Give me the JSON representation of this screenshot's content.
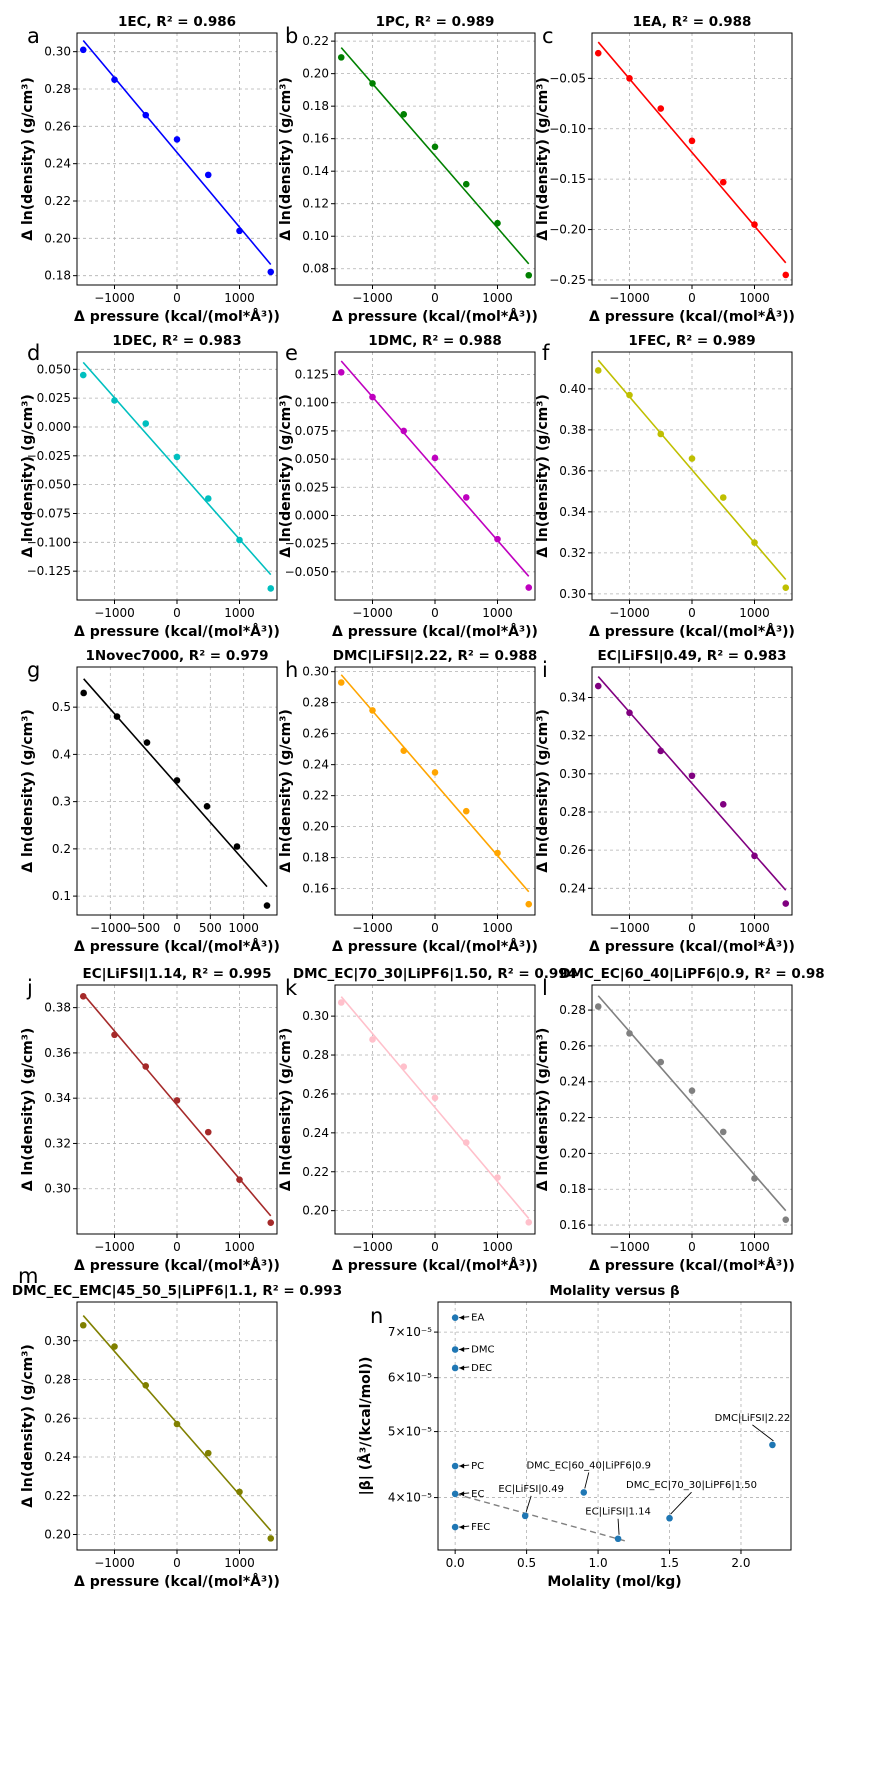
{
  "figure": {
    "xlabel": "Δ pressure (kcal/(mol*Å³))",
    "ylabel": "Δ ln(density) (g/cm³)"
  },
  "chart_data": [
    {
      "letter": "a",
      "type": "scatter",
      "title": "1EC, R² = 0.986",
      "color": "#0000ff",
      "x": [
        -1500,
        -1000,
        -500,
        0,
        500,
        1000,
        1500
      ],
      "y": [
        0.301,
        0.285,
        0.266,
        0.253,
        0.234,
        0.204,
        0.182
      ],
      "fit": [
        0.306,
        0.186
      ],
      "xlim": [
        -1600,
        1600
      ],
      "ylim": [
        0.175,
        0.31
      ],
      "xticks": [
        -1000,
        0,
        1000
      ],
      "xtick_labels": [
        "−1000",
        "0",
        "1000"
      ],
      "yticks": [
        0.18,
        0.2,
        0.22,
        0.24,
        0.26,
        0.28,
        0.3
      ],
      "ytick_labels": [
        "0.18",
        "0.20",
        "0.22",
        "0.24",
        "0.26",
        "0.28",
        "0.30"
      ]
    },
    {
      "letter": "b",
      "type": "scatter",
      "title": "1PC, R² = 0.989",
      "color": "#008000",
      "x": [
        -1500,
        -1000,
        -500,
        0,
        500,
        1000,
        1500
      ],
      "y": [
        0.21,
        0.194,
        0.175,
        0.155,
        0.132,
        0.108,
        0.076
      ],
      "fit": [
        0.216,
        0.083
      ],
      "xlim": [
        -1600,
        1600
      ],
      "ylim": [
        0.07,
        0.225
      ],
      "xticks": [
        -1000,
        0,
        1000
      ],
      "xtick_labels": [
        "−1000",
        "0",
        "1000"
      ],
      "yticks": [
        0.08,
        0.1,
        0.12,
        0.14,
        0.16,
        0.18,
        0.2,
        0.22
      ],
      "ytick_labels": [
        "0.08",
        "0.10",
        "0.12",
        "0.14",
        "0.16",
        "0.18",
        "0.20",
        "0.22"
      ]
    },
    {
      "letter": "c",
      "type": "scatter",
      "title": "1EA, R² = 0.988",
      "color": "#ff0000",
      "x": [
        -1500,
        -1000,
        -500,
        0,
        500,
        1000,
        1500
      ],
      "y": [
        -0.025,
        -0.05,
        -0.08,
        -0.112,
        -0.153,
        -0.195,
        -0.245
      ],
      "fit": [
        -0.014,
        -0.233
      ],
      "xlim": [
        -1600,
        1600
      ],
      "ylim": [
        -0.255,
        -0.005
      ],
      "xticks": [
        -1000,
        0,
        1000
      ],
      "xtick_labels": [
        "−1000",
        "0",
        "1000"
      ],
      "yticks": [
        -0.25,
        -0.2,
        -0.15,
        -0.1,
        -0.05
      ],
      "ytick_labels": [
        "−0.25",
        "−0.20",
        "−0.15",
        "−0.10",
        "−0.05"
      ]
    },
    {
      "letter": "d",
      "type": "scatter",
      "title": "1DEC, R² = 0.983",
      "color": "#00bfbf",
      "x": [
        -1500,
        -1000,
        -500,
        0,
        500,
        1000,
        1500
      ],
      "y": [
        0.045,
        0.023,
        0.003,
        -0.026,
        -0.062,
        -0.098,
        -0.14
      ],
      "fit": [
        0.056,
        -0.128
      ],
      "xlim": [
        -1600,
        1600
      ],
      "ylim": [
        -0.15,
        0.065
      ],
      "xticks": [
        -1000,
        0,
        1000
      ],
      "xtick_labels": [
        "−1000",
        "0",
        "1000"
      ],
      "yticks": [
        -0.125,
        -0.1,
        -0.075,
        -0.05,
        -0.025,
        0.0,
        0.025,
        0.05
      ],
      "ytick_labels": [
        "−0.125",
        "−0.100",
        "−0.075",
        "−0.050",
        "−0.025",
        "0.000",
        "0.025",
        "0.050"
      ]
    },
    {
      "letter": "e",
      "type": "scatter",
      "title": "1DMC, R² = 0.988",
      "color": "#bf00bf",
      "x": [
        -1500,
        -1000,
        -500,
        0,
        500,
        1000,
        1500
      ],
      "y": [
        0.127,
        0.105,
        0.075,
        0.051,
        0.016,
        -0.021,
        -0.064
      ],
      "fit": [
        0.137,
        -0.054
      ],
      "xlim": [
        -1600,
        1600
      ],
      "ylim": [
        -0.075,
        0.145
      ],
      "xticks": [
        -1000,
        0,
        1000
      ],
      "xtick_labels": [
        "−1000",
        "0",
        "1000"
      ],
      "yticks": [
        -0.05,
        -0.025,
        0.0,
        0.025,
        0.05,
        0.075,
        0.1,
        0.125
      ],
      "ytick_labels": [
        "−0.050",
        "−0.025",
        "0.000",
        "0.025",
        "0.050",
        "0.075",
        "0.100",
        "0.125"
      ]
    },
    {
      "letter": "f",
      "type": "scatter",
      "title": "1FEC, R² = 0.989",
      "color": "#bfbf00",
      "x": [
        -1500,
        -1000,
        -500,
        0,
        500,
        1000,
        1500
      ],
      "y": [
        0.409,
        0.397,
        0.378,
        0.366,
        0.347,
        0.325,
        0.303
      ],
      "fit": [
        0.414,
        0.307
      ],
      "xlim": [
        -1600,
        1600
      ],
      "ylim": [
        0.297,
        0.418
      ],
      "xticks": [
        -1000,
        0,
        1000
      ],
      "xtick_labels": [
        "−1000",
        "0",
        "1000"
      ],
      "yticks": [
        0.3,
        0.32,
        0.34,
        0.36,
        0.38,
        0.4
      ],
      "ytick_labels": [
        "0.30",
        "0.32",
        "0.34",
        "0.36",
        "0.38",
        "0.40"
      ]
    },
    {
      "letter": "g",
      "type": "scatter",
      "title": "1Novec7000, R² = 0.979",
      "color": "#000000",
      "x": [
        -1400,
        -900,
        -450,
        0,
        450,
        900,
        1350
      ],
      "y": [
        0.53,
        0.48,
        0.425,
        0.345,
        0.29,
        0.205,
        0.08
      ],
      "fit": [
        0.56,
        0.12
      ],
      "xlim": [
        -1500,
        1500
      ],
      "ylim": [
        0.06,
        0.585
      ],
      "xticks": [
        -1000,
        -500,
        0,
        500,
        1000
      ],
      "xtick_labels": [
        "−1000",
        "−500",
        "0",
        "500",
        "1000"
      ],
      "yticks": [
        0.1,
        0.2,
        0.3,
        0.4,
        0.5
      ],
      "ytick_labels": [
        "0.1",
        "0.2",
        "0.3",
        "0.4",
        "0.5"
      ]
    },
    {
      "letter": "h",
      "type": "scatter",
      "title": "DMC|LiFSI|2.22, R² = 0.988",
      "color": "#ffa500",
      "x": [
        -1500,
        -1000,
        -500,
        0,
        500,
        1000,
        1500
      ],
      "y": [
        0.293,
        0.275,
        0.249,
        0.235,
        0.21,
        0.183,
        0.15
      ],
      "fit": [
        0.298,
        0.158
      ],
      "xlim": [
        -1600,
        1600
      ],
      "ylim": [
        0.143,
        0.303
      ],
      "xticks": [
        -1000,
        0,
        1000
      ],
      "xtick_labels": [
        "−1000",
        "0",
        "1000"
      ],
      "yticks": [
        0.16,
        0.18,
        0.2,
        0.22,
        0.24,
        0.26,
        0.28,
        0.3
      ],
      "ytick_labels": [
        "0.16",
        "0.18",
        "0.20",
        "0.22",
        "0.24",
        "0.26",
        "0.28",
        "0.30"
      ]
    },
    {
      "letter": "i",
      "type": "scatter",
      "title": "EC|LiFSI|0.49, R² = 0.983",
      "color": "#800080",
      "x": [
        -1500,
        -1000,
        -500,
        0,
        500,
        1000,
        1500
      ],
      "y": [
        0.346,
        0.332,
        0.312,
        0.299,
        0.284,
        0.257,
        0.232
      ],
      "fit": [
        0.351,
        0.239
      ],
      "xlim": [
        -1600,
        1600
      ],
      "ylim": [
        0.226,
        0.356
      ],
      "xticks": [
        -1000,
        0,
        1000
      ],
      "xtick_labels": [
        "−1000",
        "0",
        "1000"
      ],
      "yticks": [
        0.24,
        0.26,
        0.28,
        0.3,
        0.32,
        0.34
      ],
      "ytick_labels": [
        "0.24",
        "0.26",
        "0.28",
        "0.30",
        "0.32",
        "0.34"
      ]
    },
    {
      "letter": "j",
      "type": "scatter",
      "title": "EC|LiFSI|1.14, R² = 0.995",
      "color": "#a52a2a",
      "x": [
        -1500,
        -1000,
        -500,
        0,
        500,
        1000,
        1500
      ],
      "y": [
        0.385,
        0.368,
        0.354,
        0.339,
        0.325,
        0.304,
        0.285
      ],
      "fit": [
        0.386,
        0.288
      ],
      "xlim": [
        -1600,
        1600
      ],
      "ylim": [
        0.28,
        0.39
      ],
      "xticks": [
        -1000,
        0,
        1000
      ],
      "xtick_labels": [
        "−1000",
        "0",
        "1000"
      ],
      "yticks": [
        0.3,
        0.32,
        0.34,
        0.36,
        0.38
      ],
      "ytick_labels": [
        "0.30",
        "0.32",
        "0.34",
        "0.36",
        "0.38"
      ]
    },
    {
      "letter": "k",
      "type": "scatter",
      "title": "DMC_EC|70_30|LiPF6|1.50, R² = 0.994",
      "color": "#ffc0cb",
      "x": [
        -1500,
        -1000,
        -500,
        0,
        500,
        1000,
        1500
      ],
      "y": [
        0.307,
        0.288,
        0.274,
        0.258,
        0.235,
        0.217,
        0.194
      ],
      "fit": [
        0.31,
        0.196
      ],
      "xlim": [
        -1600,
        1600
      ],
      "ylim": [
        0.188,
        0.316
      ],
      "xticks": [
        -1000,
        0,
        1000
      ],
      "xtick_labels": [
        "−1000",
        "0",
        "1000"
      ],
      "yticks": [
        0.2,
        0.22,
        0.24,
        0.26,
        0.28,
        0.3
      ],
      "ytick_labels": [
        "0.20",
        "0.22",
        "0.24",
        "0.26",
        "0.28",
        "0.30"
      ]
    },
    {
      "letter": "l",
      "type": "scatter",
      "title": "DMC_EC|60_40|LiPF6|0.9, R² = 0.98",
      "color": "#808080",
      "x": [
        -1500,
        -1000,
        -500,
        0,
        500,
        1000,
        1500
      ],
      "y": [
        0.282,
        0.267,
        0.251,
        0.235,
        0.212,
        0.186,
        0.163
      ],
      "fit": [
        0.288,
        0.168
      ],
      "xlim": [
        -1600,
        1600
      ],
      "ylim": [
        0.155,
        0.294
      ],
      "xticks": [
        -1000,
        0,
        1000
      ],
      "xtick_labels": [
        "−1000",
        "0",
        "1000"
      ],
      "yticks": [
        0.16,
        0.18,
        0.2,
        0.22,
        0.24,
        0.26,
        0.28
      ],
      "ytick_labels": [
        "0.16",
        "0.18",
        "0.20",
        "0.22",
        "0.24",
        "0.26",
        "0.28"
      ]
    },
    {
      "letter": "m",
      "type": "scatter",
      "title": "DMC_EC_EMC|45_50_5|LiPF6|1.1, R² = 0.993",
      "color": "#808000",
      "x": [
        -1500,
        -1000,
        -500,
        0,
        500,
        1000,
        1500
      ],
      "y": [
        0.308,
        0.297,
        0.277,
        0.257,
        0.242,
        0.222,
        0.198
      ],
      "fit": [
        0.313,
        0.202
      ],
      "xlim": [
        -1600,
        1600
      ],
      "ylim": [
        0.192,
        0.32
      ],
      "xticks": [
        -1000,
        0,
        1000
      ],
      "xtick_labels": [
        "−1000",
        "0",
        "1000"
      ],
      "yticks": [
        0.2,
        0.22,
        0.24,
        0.26,
        0.28,
        0.3
      ],
      "ytick_labels": [
        "0.20",
        "0.22",
        "0.24",
        "0.26",
        "0.28",
        "0.30"
      ]
    },
    {
      "letter": "n",
      "type": "scatter",
      "title": "Molality versus β",
      "xlabel": "Molality (mol/kg)",
      "ylabel": "|β| (Å³/(kcal/mol))",
      "color": "#1f77b4",
      "log_y": true,
      "xlim": [
        -0.12,
        2.35
      ],
      "ylim": [
        3.35e-05,
        7.75e-05
      ],
      "xticks": [
        0.0,
        0.5,
        1.0,
        1.5,
        2.0
      ],
      "xtick_labels": [
        "0.0",
        "0.5",
        "1.0",
        "1.5",
        "2.0"
      ],
      "yticks": [
        4e-05,
        5e-05,
        6e-05,
        7e-05
      ],
      "ytick_labels": [
        "4×10⁻⁵",
        "5×10⁻⁵",
        "6×10⁻⁵",
        "7×10⁻⁵"
      ],
      "points": [
        {
          "label": "EA",
          "x": 0.0,
          "y": 7.35e-05,
          "side": "right"
        },
        {
          "label": "DMC",
          "x": 0.0,
          "y": 6.6e-05,
          "side": "right"
        },
        {
          "label": "DEC",
          "x": 0.0,
          "y": 6.2e-05,
          "side": "right"
        },
        {
          "label": "PC",
          "x": 0.0,
          "y": 4.45e-05,
          "side": "right"
        },
        {
          "label": "EC",
          "x": 0.0,
          "y": 4.05e-05,
          "side": "right"
        },
        {
          "label": "FEC",
          "x": 0.0,
          "y": 3.62e-05,
          "side": "right"
        },
        {
          "label": "EC|LiFSI|0.49",
          "x": 0.49,
          "y": 3.76e-05,
          "side": "up"
        },
        {
          "label": "DMC_EC|60_40|LiPF6|0.9",
          "x": 0.9,
          "y": 4.07e-05,
          "side": "up"
        },
        {
          "label": "EC|LiFSI|1.14",
          "x": 1.14,
          "y": 3.48e-05,
          "side": "up"
        },
        {
          "label": "DMC_EC|70_30|LiPF6|1.50",
          "x": 1.5,
          "y": 3.73e-05,
          "side": "up"
        },
        {
          "label": "DMC|LiFSI|2.22",
          "x": 2.22,
          "y": 4.78e-05,
          "side": "up"
        }
      ],
      "trend_line": {
        "x": [
          0.0,
          1.2
        ],
        "y": [
          4.05e-05,
          3.45e-05
        ]
      }
    }
  ]
}
